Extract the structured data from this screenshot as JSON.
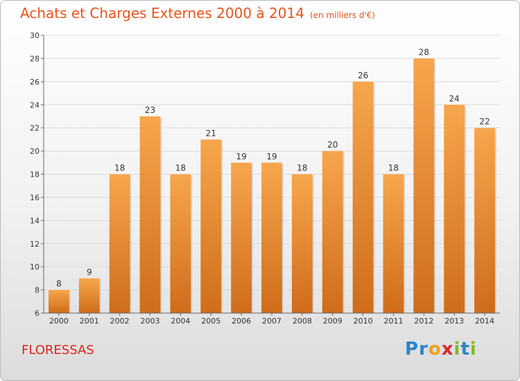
{
  "chart_data": {
    "type": "bar",
    "title": "Achats et Charges Externes 2000 à 2014",
    "subtitle": "(en milliers d'€)",
    "xlabel": "",
    "ylabel": "",
    "categories": [
      "2000",
      "2001",
      "2002",
      "2003",
      "2004",
      "2005",
      "2006",
      "2007",
      "2008",
      "2009",
      "2010",
      "2011",
      "2012",
      "2013",
      "2014"
    ],
    "values": [
      8,
      9,
      18,
      23,
      18,
      21,
      19,
      19,
      18,
      20,
      26,
      18,
      28,
      24,
      22
    ],
    "ylim": [
      6,
      30
    ],
    "yticks": [
      6,
      8,
      10,
      12,
      14,
      16,
      18,
      20,
      22,
      24,
      26,
      28,
      30
    ],
    "grid": true,
    "bar_color_top": "#f7a64c",
    "bar_color_bottom": "#cf6c1a"
  },
  "location": "FLORESSAS",
  "logo": {
    "letters": [
      "P",
      "r",
      "o",
      "x",
      "i",
      "t",
      "i"
    ],
    "colors": [
      "#2a86c9",
      "#2a86c9",
      "#f0a023",
      "#d92b2b",
      "#7cbb2c",
      "#2a86c9",
      "#7cbb2c"
    ]
  }
}
